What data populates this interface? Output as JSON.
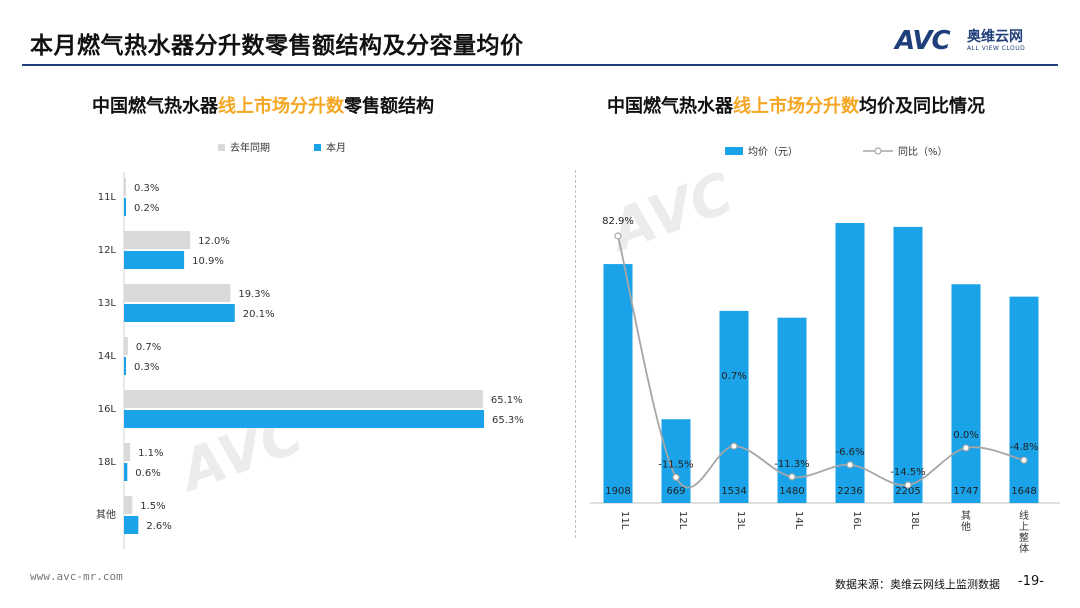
{
  "header": {
    "title": "本月燃气热水器分升数零售额结构及分容量均价",
    "logo_avc": "AVC",
    "logo_cn": "奥维云网",
    "logo_en": "ALL VIEW CLOUD"
  },
  "left_chart": {
    "title_pre": "中国燃气热水器",
    "title_hl": "线上市场分升数",
    "title_post": "零售额结构"
  },
  "right_chart": {
    "title_pre": "中国燃气热水器",
    "title_hl": "线上市场分升数",
    "title_post": "均价及同比情况"
  },
  "footer": {
    "url": "www.avc-mr.com",
    "source": "数据来源：奥维云网线上监测数据",
    "page": "-19-"
  },
  "colors": {
    "bar_current": "#1aa3e8",
    "bar_last_year": "#d9d9d9",
    "line": "#a6a6a6",
    "highlight": "#f5a623",
    "brand": "#1f3f7a"
  },
  "chart_data": [
    {
      "type": "bar",
      "orientation": "horizontal",
      "categories": [
        "11L",
        "12L",
        "13L",
        "14L",
        "16L",
        "18L",
        "其他"
      ],
      "series": [
        {
          "name": "去年同期",
          "values": [
            0.3,
            12.0,
            19.3,
            0.7,
            65.1,
            1.1,
            1.5
          ],
          "labels": [
            "0.3%",
            "12.0%",
            "19.3%",
            "0.7%",
            "65.1%",
            "1.1%",
            "1.5%"
          ]
        },
        {
          "name": "本月",
          "values": [
            0.2,
            10.9,
            20.1,
            0.3,
            65.3,
            0.6,
            2.6
          ],
          "labels": [
            "0.2%",
            "10.9%",
            "20.1%",
            "0.3%",
            "65.3%",
            "0.6%",
            "2.6%"
          ]
        }
      ],
      "xlim": [
        0,
        70
      ],
      "legend": "top-left"
    },
    {
      "type": "bar",
      "categories": [
        "11L",
        "12L",
        "13L",
        "14L",
        "16L",
        "18L",
        "其他",
        "线上整体"
      ],
      "series": [
        {
          "name": "均价（元）",
          "type": "bar",
          "values": [
            1908,
            669,
            1534,
            1480,
            2236,
            2205,
            1747,
            1648
          ],
          "labels": [
            "1908",
            "669",
            "1534",
            "1480",
            "2236",
            "2205",
            "1747",
            "1648"
          ]
        },
        {
          "name": "同比（%）",
          "type": "line",
          "values": [
            82.9,
            -11.5,
            0.7,
            -11.3,
            -6.6,
            -14.5,
            0.0,
            -4.8
          ],
          "labels": [
            "82.9%",
            "-11.5%",
            "0.7%",
            "-11.3%",
            "-6.6%",
            "-14.5%",
            "0.0%",
            "-4.8%"
          ]
        }
      ],
      "ylim": [
        0,
        2300
      ],
      "y2lim": [
        -20,
        100
      ],
      "legend": "top"
    }
  ]
}
